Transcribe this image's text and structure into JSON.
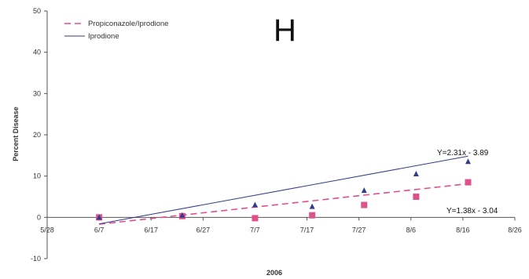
{
  "chart_data": {
    "type": "scatter",
    "panel_letter": "H",
    "xlabel": "2006",
    "ylabel": "Percent Disease",
    "x_ticks": [
      "5/28",
      "6/7",
      "6/17",
      "6/27",
      "7/7",
      "7/17",
      "7/27",
      "8/6",
      "8/16",
      "8/26"
    ],
    "y_ticks": [
      "50",
      "40",
      "30",
      "20",
      "10",
      "0",
      "-10"
    ],
    "xlim": [
      0,
      90
    ],
    "ylim": [
      -10,
      50
    ],
    "legend_position": "top-left",
    "series": [
      {
        "name": "Propiconazole/Iprodione",
        "marker": "square",
        "color": "#e0508a",
        "line_style": "dashed",
        "points": [
          {
            "x": 10,
            "y": 0
          },
          {
            "x": 26,
            "y": 0.3
          },
          {
            "x": 40,
            "y": -0.2
          },
          {
            "x": 51,
            "y": 0.5
          },
          {
            "x": 61,
            "y": 3
          },
          {
            "x": 71,
            "y": 5
          },
          {
            "x": 81,
            "y": 8.5
          }
        ],
        "trendline": {
          "slope": 1.38,
          "intercept": -3.04,
          "equation": "Y=1.38x - 3.04",
          "x_start": 10,
          "x_end": 81
        }
      },
      {
        "name": "Iprodione",
        "marker": "triangle",
        "color": "#333b8c",
        "line_style": "solid",
        "points": [
          {
            "x": 10,
            "y": 0
          },
          {
            "x": 26,
            "y": 0.5
          },
          {
            "x": 40,
            "y": 3
          },
          {
            "x": 51,
            "y": 2.6
          },
          {
            "x": 61,
            "y": 6.5
          },
          {
            "x": 71,
            "y": 10.5
          },
          {
            "x": 81,
            "y": 13.5
          }
        ],
        "trendline": {
          "slope": 2.31,
          "intercept": -3.89,
          "equation": "Y=2.31x - 3.89",
          "x_start": 10,
          "x_end": 81
        }
      }
    ]
  }
}
